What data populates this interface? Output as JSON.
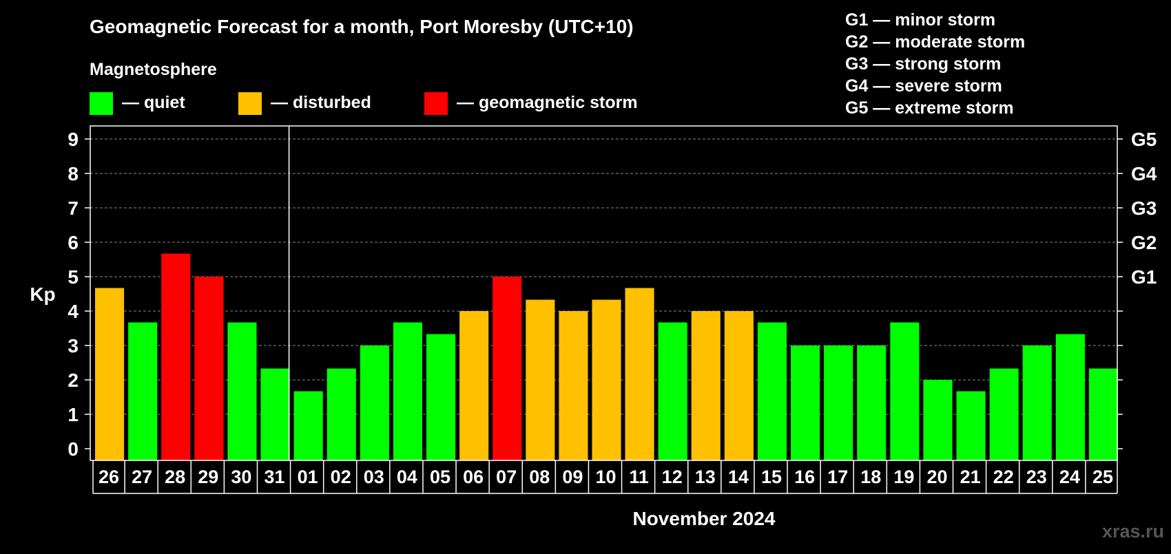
{
  "title": "Geomagnetic Forecast for a month, Port Moresby (UTC+10)",
  "legend": {
    "heading": "Magnetosphere",
    "items": [
      {
        "label": "— quiet",
        "color": "#00ff00"
      },
      {
        "label": "— disturbed",
        "color": "#ffc000"
      },
      {
        "label": "— geomagnetic storm",
        "color": "#ff0000"
      }
    ]
  },
  "g_scale": [
    "G1 — minor storm",
    "G2 — moderate storm",
    "G3 — strong storm",
    "G4 — severe storm",
    "G5 — extreme storm"
  ],
  "watermark": "xras.ru",
  "colors": {
    "quiet": "#00ff00",
    "disturbed": "#ffc000",
    "storm": "#ff0000",
    "background": "#000000",
    "axis": "#ffffff"
  },
  "chart_data": {
    "type": "bar",
    "ylabel": "Kp",
    "xlabel": "November 2024",
    "ylim": [
      0,
      9
    ],
    "yticks": [
      0,
      1,
      2,
      3,
      4,
      5,
      6,
      7,
      8,
      9
    ],
    "right_ticks": [
      {
        "value": 5,
        "label": "G1"
      },
      {
        "value": 6,
        "label": "G2"
      },
      {
        "value": 7,
        "label": "G3"
      },
      {
        "value": 8,
        "label": "G4"
      },
      {
        "value": 9,
        "label": "G5"
      }
    ],
    "grid": true,
    "month_divider_after_index": 5,
    "categories": [
      "26",
      "27",
      "28",
      "29",
      "30",
      "31",
      "01",
      "02",
      "03",
      "04",
      "05",
      "06",
      "07",
      "08",
      "09",
      "10",
      "11",
      "12",
      "13",
      "14",
      "15",
      "16",
      "17",
      "18",
      "19",
      "20",
      "21",
      "22",
      "23",
      "24",
      "25"
    ],
    "values": [
      4.67,
      3.67,
      5.67,
      5.0,
      3.67,
      2.33,
      1.67,
      2.33,
      3.0,
      3.67,
      3.33,
      4.0,
      5.0,
      4.33,
      4.0,
      4.33,
      4.67,
      3.67,
      4.0,
      4.0,
      3.67,
      3.0,
      3.0,
      3.0,
      3.67,
      2.0,
      1.67,
      2.33,
      3.0,
      3.33,
      2.33
    ],
    "levels": [
      "disturbed",
      "quiet",
      "storm",
      "storm",
      "quiet",
      "quiet",
      "quiet",
      "quiet",
      "quiet",
      "quiet",
      "quiet",
      "disturbed",
      "storm",
      "disturbed",
      "disturbed",
      "disturbed",
      "disturbed",
      "quiet",
      "disturbed",
      "disturbed",
      "quiet",
      "quiet",
      "quiet",
      "quiet",
      "quiet",
      "quiet",
      "quiet",
      "quiet",
      "quiet",
      "quiet",
      "quiet"
    ]
  }
}
